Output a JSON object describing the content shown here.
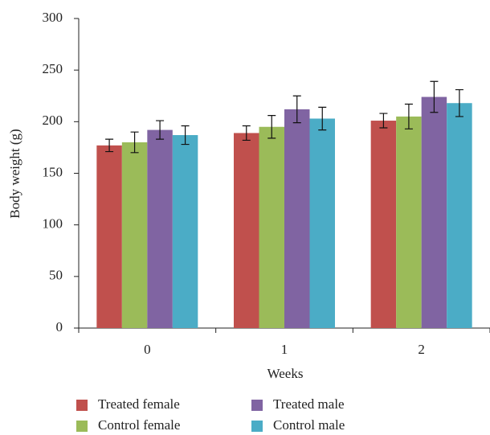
{
  "chart_data": {
    "type": "bar",
    "x_label": "Weeks",
    "y_label": "Body weight (g)",
    "categories": [
      "0",
      "1",
      "2"
    ],
    "series": [
      {
        "name": "Treated female",
        "color": "#c0504d",
        "values": [
          177,
          189,
          201
        ],
        "errors": [
          6,
          7,
          7
        ]
      },
      {
        "name": "Control female",
        "color": "#9bbb59",
        "values": [
          180,
          195,
          205
        ],
        "errors": [
          10,
          11,
          12
        ]
      },
      {
        "name": "Treated male",
        "color": "#8064a2",
        "values": [
          192,
          212,
          224
        ],
        "errors": [
          9,
          13,
          15
        ]
      },
      {
        "name": "Control male",
        "color": "#4bacc6",
        "values": [
          187,
          203,
          218
        ],
        "errors": [
          9,
          11,
          13
        ]
      }
    ],
    "ylim": [
      0,
      300
    ],
    "yticks": [
      0,
      50,
      100,
      150,
      200,
      250,
      300
    ],
    "grid": false,
    "legend": "bottom"
  }
}
